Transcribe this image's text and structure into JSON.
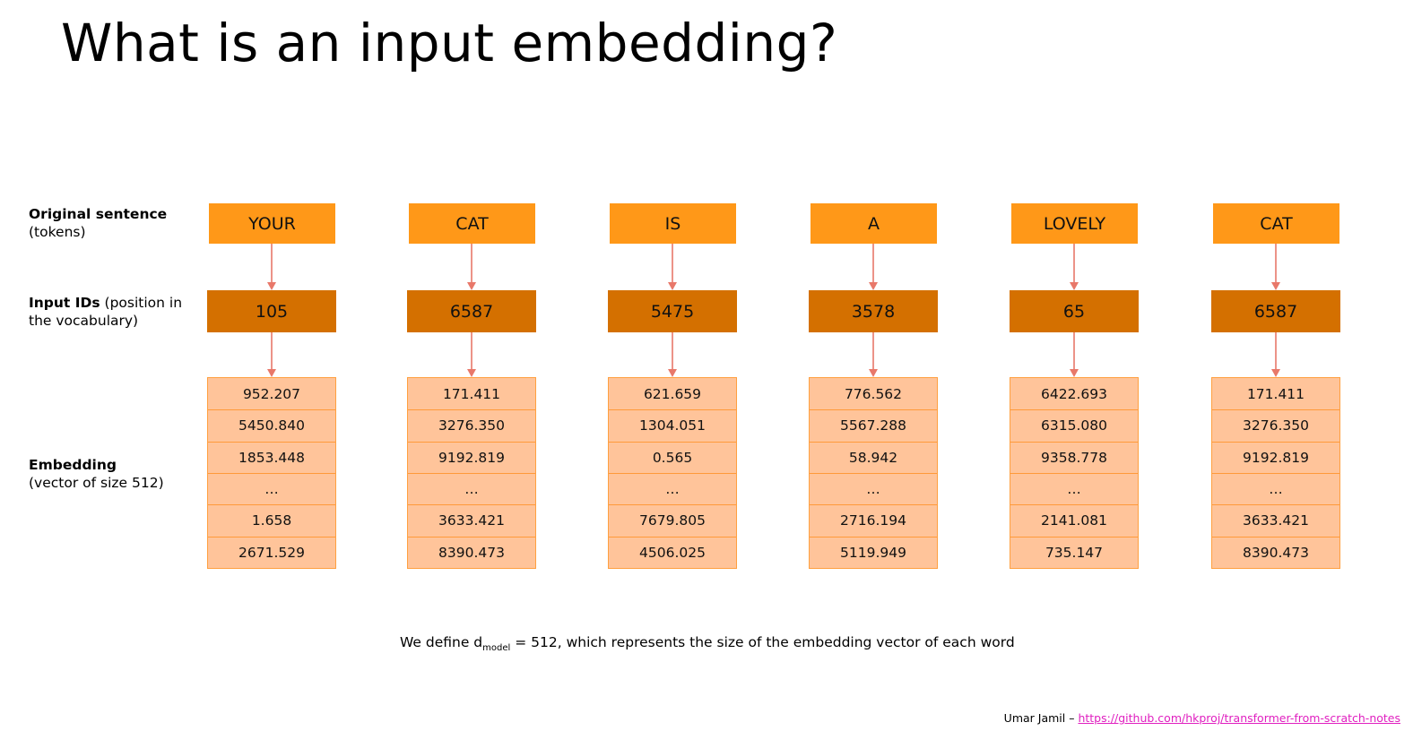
{
  "title": "What is an input embedding?",
  "labels": {
    "original": {
      "bold": "Original sentence",
      "rest": "(tokens)"
    },
    "input_ids": {
      "bold": "Input IDs",
      "rest_1": " (position in",
      "rest_2": "the vocabulary)"
    },
    "embedding": {
      "bold": "Embedding",
      "rest": "(vector of size 512)"
    }
  },
  "columns": [
    {
      "token": "YOUR",
      "id": "105",
      "embedding": [
        "952.207",
        "5450.840",
        "1853.448",
        "…",
        "1.658",
        "2671.529"
      ]
    },
    {
      "token": "CAT",
      "id": "6587",
      "embedding": [
        "171.411",
        "3276.350",
        "9192.819",
        "…",
        "3633.421",
        "8390.473"
      ]
    },
    {
      "token": "IS",
      "id": "5475",
      "embedding": [
        "621.659",
        "1304.051",
        "0.565",
        "…",
        "7679.805",
        "4506.025"
      ]
    },
    {
      "token": "A",
      "id": "3578",
      "embedding": [
        "776.562",
        "5567.288",
        "58.942",
        "…",
        "2716.194",
        "5119.949"
      ]
    },
    {
      "token": "LOVELY",
      "id": "65",
      "embedding": [
        "6422.693",
        "6315.080",
        "9358.778",
        "…",
        "2141.081",
        "735.147"
      ]
    },
    {
      "token": "CAT",
      "id": "6587",
      "embedding": [
        "171.411",
        "3276.350",
        "9192.819",
        "…",
        "3633.421",
        "8390.473"
      ]
    }
  ],
  "caption": {
    "before": "We define d",
    "sub": "model",
    "after": " = 512, which represents the size of the embedding vector of each word"
  },
  "footer": {
    "author": "Umar Jamil – ",
    "link": "https://github.com/hkproj/transformer-from-scratch-notes"
  },
  "colors": {
    "token": "#ff9818",
    "id": "#d47000",
    "embedding": "#ffc49a",
    "arrow": "#e8786a"
  }
}
